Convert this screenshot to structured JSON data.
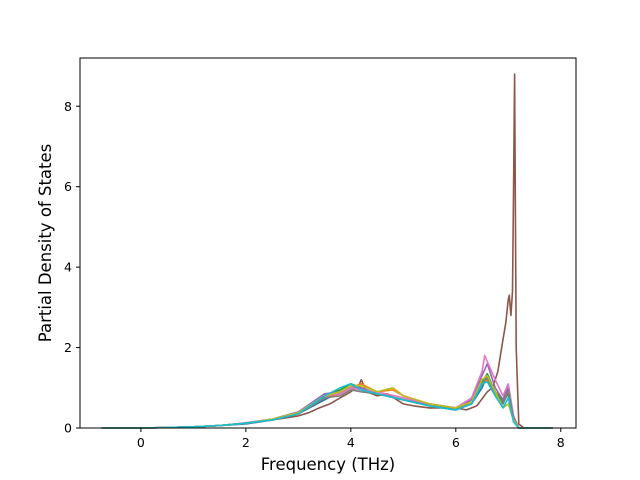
{
  "chart_data": {
    "type": "line",
    "title": "",
    "xlabel": "Frequency (THz)",
    "ylabel": "Partial Density of States",
    "xlim": [
      -1.16,
      8.29
    ],
    "ylim": [
      0,
      9.2
    ],
    "xticks": [
      0,
      2,
      4,
      6,
      8
    ],
    "yticks": [
      0,
      2,
      4,
      6,
      8
    ],
    "grid": false,
    "legend": "none",
    "series": [
      {
        "color": "#8c564b",
        "x": [
          -0.75,
          0.0,
          0.5,
          1.0,
          1.5,
          2.0,
          2.5,
          3.0,
          3.2,
          3.4,
          3.6,
          3.8,
          4.0,
          4.15,
          4.2,
          4.3,
          4.5,
          4.7,
          5.0,
          5.2,
          5.5,
          5.7,
          6.0,
          6.2,
          6.4,
          6.6,
          6.7,
          6.8,
          6.9,
          6.95,
          7.0,
          7.02,
          7.05,
          7.08,
          7.1,
          7.12,
          7.15,
          7.2,
          7.3,
          7.85
        ],
        "y": [
          0,
          0,
          0.01,
          0.03,
          0.06,
          0.12,
          0.2,
          0.3,
          0.38,
          0.5,
          0.6,
          0.75,
          0.9,
          1.05,
          1.2,
          0.9,
          0.8,
          0.85,
          0.6,
          0.55,
          0.5,
          0.5,
          0.5,
          0.45,
          0.55,
          0.9,
          1.0,
          1.4,
          2.2,
          2.6,
          3.2,
          3.3,
          2.8,
          3.4,
          5.8,
          8.8,
          2.0,
          0.1,
          0,
          0
        ]
      },
      {
        "color": "#1f77b4",
        "x": [
          -0.75,
          0.0,
          0.5,
          1.0,
          1.5,
          2.0,
          2.5,
          3.0,
          3.5,
          3.8,
          4.0,
          4.2,
          4.5,
          5.0,
          5.5,
          6.0,
          6.3,
          6.5,
          6.6,
          6.75,
          6.9,
          7.0,
          7.1,
          7.2,
          7.85
        ],
        "y": [
          0,
          0,
          0.01,
          0.03,
          0.06,
          0.1,
          0.2,
          0.35,
          0.7,
          0.9,
          1.0,
          0.95,
          0.85,
          0.7,
          0.55,
          0.45,
          0.6,
          1.0,
          1.3,
          0.9,
          0.6,
          0.9,
          0.3,
          0,
          0
        ]
      },
      {
        "color": "#ff7f0e",
        "x": [
          -0.75,
          0.0,
          0.5,
          1.0,
          1.5,
          2.0,
          2.5,
          3.0,
          3.5,
          3.8,
          4.0,
          4.2,
          4.5,
          4.8,
          5.0,
          5.5,
          6.0,
          6.3,
          6.5,
          6.6,
          6.75,
          6.9,
          7.0,
          7.1,
          7.2,
          7.85
        ],
        "y": [
          0,
          0,
          0.01,
          0.03,
          0.06,
          0.12,
          0.22,
          0.35,
          0.75,
          0.85,
          1.0,
          1.1,
          0.9,
          0.95,
          0.8,
          0.6,
          0.5,
          0.6,
          1.1,
          1.2,
          0.9,
          0.7,
          1.0,
          0.2,
          0,
          0
        ]
      },
      {
        "color": "#2ca02c",
        "x": [
          -0.75,
          0.0,
          0.5,
          1.0,
          1.5,
          2.0,
          2.5,
          3.0,
          3.5,
          3.8,
          4.0,
          4.2,
          4.5,
          5.0,
          5.5,
          6.0,
          6.3,
          6.5,
          6.6,
          6.75,
          6.9,
          7.0,
          7.1,
          7.2,
          7.85
        ],
        "y": [
          0,
          0,
          0.01,
          0.03,
          0.06,
          0.12,
          0.2,
          0.35,
          0.8,
          0.95,
          1.1,
          1.0,
          0.85,
          0.7,
          0.55,
          0.5,
          0.65,
          1.15,
          1.35,
          0.9,
          0.65,
          0.85,
          0.25,
          0,
          0
        ]
      },
      {
        "color": "#9467bd",
        "x": [
          -0.75,
          0.0,
          0.5,
          1.0,
          1.5,
          2.0,
          2.5,
          3.0,
          3.5,
          3.8,
          4.0,
          4.2,
          4.5,
          5.0,
          5.5,
          6.0,
          6.3,
          6.5,
          6.6,
          6.75,
          6.9,
          7.0,
          7.1,
          7.2,
          7.85
        ],
        "y": [
          0,
          0,
          0.01,
          0.03,
          0.06,
          0.13,
          0.22,
          0.4,
          0.85,
          0.9,
          1.05,
          1.0,
          0.85,
          0.7,
          0.6,
          0.5,
          0.7,
          1.3,
          1.6,
          1.0,
          0.7,
          1.05,
          0.2,
          0,
          0
        ]
      },
      {
        "color": "#e377c2",
        "x": [
          -0.75,
          0.0,
          0.5,
          1.0,
          1.5,
          2.0,
          2.5,
          3.0,
          3.5,
          3.8,
          4.0,
          4.2,
          4.5,
          5.0,
          5.5,
          6.0,
          6.3,
          6.5,
          6.55,
          6.75,
          6.9,
          7.0,
          7.1,
          7.2,
          7.85
        ],
        "y": [
          0,
          0,
          0.01,
          0.03,
          0.06,
          0.12,
          0.2,
          0.38,
          0.8,
          0.85,
          1.0,
          0.95,
          0.9,
          0.75,
          0.6,
          0.5,
          0.75,
          1.4,
          1.8,
          1.2,
          0.8,
          1.1,
          0.3,
          0,
          0
        ]
      },
      {
        "color": "#7f7f7f",
        "x": [
          -0.75,
          0.0,
          0.5,
          1.0,
          1.5,
          2.0,
          2.5,
          3.0,
          3.5,
          3.8,
          4.0,
          4.2,
          4.5,
          5.0,
          5.5,
          6.0,
          6.3,
          6.5,
          6.6,
          6.75,
          6.9,
          7.0,
          7.1,
          7.2,
          7.85
        ],
        "y": [
          0,
          0,
          0.01,
          0.03,
          0.06,
          0.11,
          0.2,
          0.35,
          0.75,
          0.8,
          0.95,
          0.9,
          0.85,
          0.7,
          0.55,
          0.45,
          0.6,
          1.1,
          1.25,
          0.85,
          0.6,
          0.95,
          0.25,
          0,
          0
        ]
      },
      {
        "color": "#bcbd22",
        "x": [
          -0.75,
          0.0,
          0.5,
          1.0,
          1.5,
          2.0,
          2.5,
          3.0,
          3.5,
          3.8,
          4.0,
          4.2,
          4.5,
          4.8,
          5.0,
          5.5,
          6.0,
          6.3,
          6.5,
          6.6,
          6.75,
          6.9,
          7.0,
          7.1,
          7.2,
          7.85
        ],
        "y": [
          0,
          0,
          0.01,
          0.03,
          0.06,
          0.12,
          0.22,
          0.38,
          0.8,
          0.9,
          1.05,
          1.05,
          0.9,
          1.0,
          0.8,
          0.6,
          0.5,
          0.65,
          1.2,
          1.3,
          0.9,
          0.5,
          0.6,
          0.2,
          0,
          0
        ]
      },
      {
        "color": "#17becf",
        "x": [
          -0.75,
          0.0,
          0.5,
          1.0,
          1.5,
          2.0,
          2.5,
          3.0,
          3.5,
          3.8,
          4.0,
          4.2,
          4.5,
          5.0,
          5.5,
          6.0,
          6.3,
          6.5,
          6.6,
          6.75,
          6.9,
          7.0,
          7.1,
          7.2,
          7.85
        ],
        "y": [
          0,
          0,
          0.01,
          0.03,
          0.06,
          0.12,
          0.2,
          0.35,
          0.8,
          1.0,
          1.1,
          0.95,
          0.85,
          0.7,
          0.55,
          0.45,
          0.6,
          1.1,
          1.15,
          0.8,
          0.5,
          0.75,
          0.15,
          0,
          0
        ]
      }
    ]
  }
}
